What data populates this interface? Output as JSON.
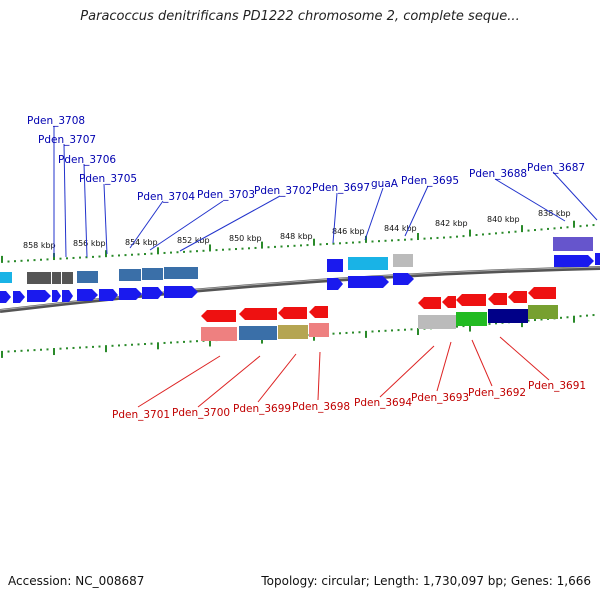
{
  "title": "Paracoccus denitrificans PD1222 chromosome 2, complete seque...",
  "footer": {
    "accession": "Accession: NC_008687",
    "info": "Topology: circular; Length: 1,730,097 bp; Genes: 1,666"
  },
  "scale_labels": [
    "858 kbp",
    "856 kbp",
    "854 kbp",
    "852 kbp",
    "850 kbp",
    "848 kbp",
    "846 kbp",
    "844 kbp",
    "842 kbp",
    "840 kbp",
    "838 kbp"
  ],
  "top_genes": [
    "Pden_3708",
    "Pden_3707",
    "Pden_3706",
    "Pden_3705",
    "Pden_3704",
    "Pden_3703",
    "Pden_3702",
    "Pden_3697",
    "guaA",
    "Pden_3695",
    "Pden_3688",
    "Pden_3687"
  ],
  "bottom_genes": [
    "Pden_3701",
    "Pden_3700",
    "Pden_3699",
    "Pden_3698",
    "Pden_3694",
    "Pden_3693",
    "Pden_3692",
    "Pden_3691"
  ],
  "colors": {
    "forward_gene": "#0000ee",
    "reverse_gene": "#ee0000",
    "top_label": "#0000b0",
    "bottom_label": "#c00000",
    "tick": "#2a8a2a"
  }
}
